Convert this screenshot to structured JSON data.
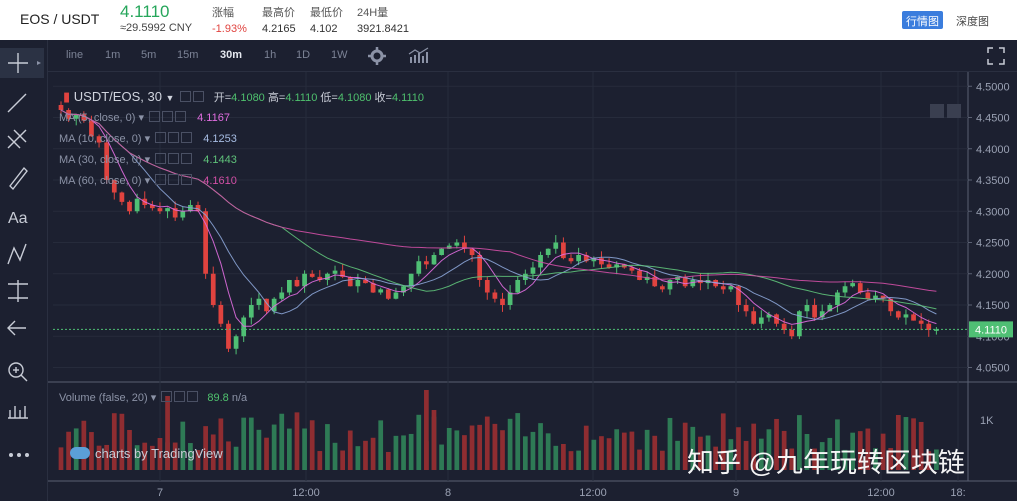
{
  "ticker": {
    "pair": "EOS / USDT",
    "last_price": "4.1110",
    "cny": "≈29.5992 CNY",
    "change_label": "涨幅",
    "change_value": "-1.93%",
    "high_label": "最高价",
    "high_value": "4.2165",
    "low_label": "最低价",
    "low_value": "4.102",
    "vol_label": "24H量",
    "vol_value": "3921.8421",
    "tab_chart": "行情图",
    "tab_depth": "深度图"
  },
  "toolbar": {
    "timeframes": [
      "line",
      "1m",
      "5m",
      "15m",
      "30m",
      "1h",
      "1D",
      "1W"
    ],
    "active": "30m"
  },
  "legend": {
    "symbol": "USDT/EOS, 30",
    "open_label": "开=",
    "open": "4.1080",
    "high_label": "高=",
    "high": "4.1110",
    "low_label": "低=",
    "low": "4.1080",
    "close_label": "收=",
    "close": "4.1110",
    "ma": [
      {
        "label": "MA (5, close, 0)",
        "value": "4.1167",
        "color": "#e06de0"
      },
      {
        "label": "MA (10, close, 0)",
        "value": "4.1253",
        "color": "#8ba4d6"
      },
      {
        "label": "MA (30, close, 0)",
        "value": "4.1443",
        "color": "#5fc27a"
      },
      {
        "label": "MA (60, close, 0)",
        "value": "4.1610",
        "color": "#d24fa6"
      }
    ],
    "volume_label": "Volume (false, 20)",
    "volume_value": "89.8",
    "volume_na": "n/a",
    "brand": "charts by TradingView",
    "watermark": "知乎 @九年玩转区块链"
  },
  "chart_data": {
    "type": "candlestick",
    "y_axis_ticks": [
      "4.5000",
      "4.4500",
      "4.4000",
      "4.3500",
      "4.3000",
      "4.2500",
      "4.2000",
      "4.1500",
      "4.1000",
      "4.0500"
    ],
    "y_axis_range": [
      4.03,
      4.51
    ],
    "volume_axis_tick": "1K",
    "x_axis_ticks": [
      "7",
      "12:00",
      "8",
      "12:00",
      "9",
      "12:00",
      "18:"
    ],
    "last_price_label": "4.1110",
    "close_series": [
      4.462,
      4.448,
      4.455,
      4.445,
      4.42,
      4.41,
      4.35,
      4.33,
      4.315,
      4.3,
      4.32,
      4.31,
      4.305,
      4.3,
      4.305,
      4.29,
      4.3,
      4.31,
      4.3,
      4.2,
      4.15,
      4.12,
      4.08,
      4.1,
      4.13,
      4.15,
      4.16,
      4.14,
      4.16,
      4.17,
      4.19,
      4.18,
      4.2,
      4.195,
      4.19,
      4.2,
      4.205,
      4.195,
      4.18,
      4.19,
      4.185,
      4.17,
      4.175,
      4.16,
      4.17,
      4.18,
      4.2,
      4.22,
      4.215,
      4.23,
      4.24,
      4.245,
      4.25,
      4.24,
      4.23,
      4.19,
      4.17,
      4.16,
      4.15,
      4.17,
      4.19,
      4.2,
      4.21,
      4.23,
      4.24,
      4.25,
      4.225,
      4.22,
      4.23,
      4.22,
      4.225,
      4.215,
      4.21,
      4.215,
      4.21,
      4.205,
      4.19,
      4.195,
      4.18,
      4.175,
      4.19,
      4.195,
      4.18,
      4.19,
      4.185,
      4.19,
      4.18,
      4.175,
      4.18,
      4.15,
      4.14,
      4.12,
      4.13,
      4.135,
      4.12,
      4.11,
      4.1,
      4.14,
      4.15,
      4.13,
      4.14,
      4.15,
      4.17,
      4.18,
      4.185,
      4.17,
      4.16,
      4.165,
      4.16,
      4.14,
      4.13,
      4.135,
      4.125,
      4.12,
      4.11,
      4.111
    ]
  }
}
